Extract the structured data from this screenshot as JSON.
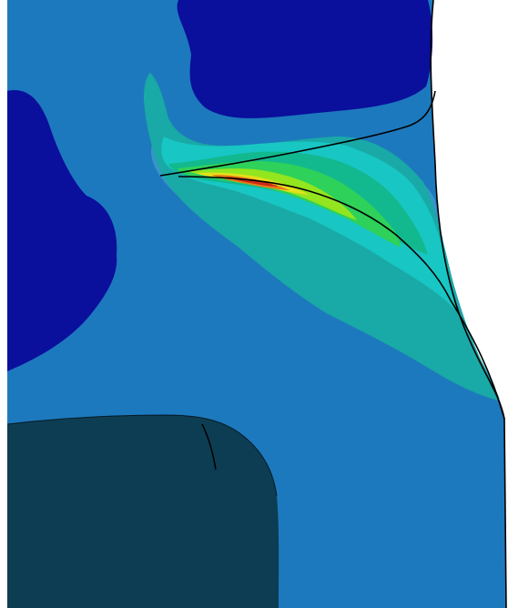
{
  "image": {
    "kind": "finite-element-stress-contour-plot",
    "visible_text": [],
    "colors": {
      "background": "#ffffff",
      "body_base": "#1d79bd",
      "low_stress_region": "#0a0f9c",
      "contour_blue_light": "#3596c8",
      "contour_teal": "#19a9a6",
      "contour_cyan": "#18c6c4",
      "contour_green_teal": "#12b98e",
      "contour_green": "#2ed15a",
      "contour_lime": "#93e51f",
      "contour_yellow": "#e3e01c",
      "contour_orange": "#e77b18",
      "contour_red": "#cc2a16",
      "dark_rigid_part": "#0d3d52",
      "edge_line": "#000000"
    }
  }
}
